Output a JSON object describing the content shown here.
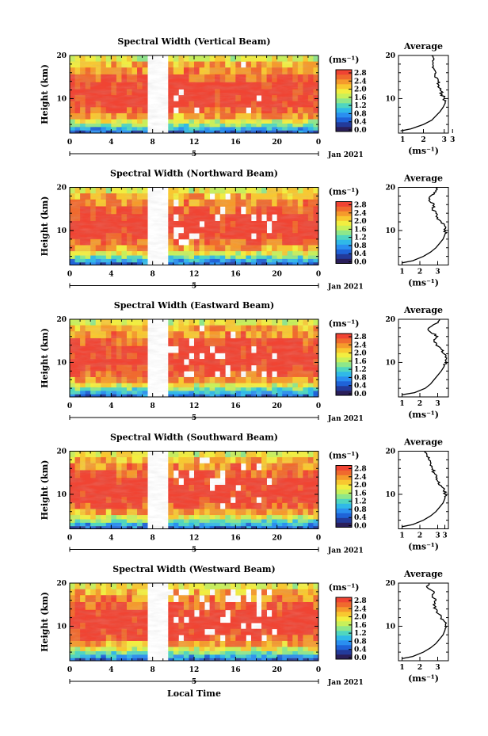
{
  "chart_data": [
    {
      "type": "heatmap",
      "title": "Spectral Width (Vertical Beam)",
      "ylabel": "Height (km)",
      "x_ticks": [
        "0",
        "4",
        "8",
        "12",
        "16",
        "20",
        "0"
      ],
      "y_ticks": [
        "20",
        "10"
      ],
      "xlim": [
        0,
        24
      ],
      "ylim": [
        2,
        20
      ],
      "date_tick_label": "5",
      "date_label": "Jan 2021",
      "missing_data_hours": [
        7.6,
        9.2
      ],
      "data_gaps": "light",
      "colorbar": {
        "unit": "(ms⁻¹)",
        "ticks": [
          "2.8",
          "2.4",
          "2.0",
          "1.6",
          "1.2",
          "0.8",
          "0.4",
          "0.0"
        ]
      },
      "average_profile": {
        "title": "Average",
        "xlabel": "(ms⁻¹)",
        "x_ticks": [
          "1",
          "2",
          "3",
          "3"
        ],
        "xlim": [
          0.8,
          3.2
        ],
        "y_ticks": [
          "20",
          "10"
        ],
        "height_km": [
          2.5,
          3,
          4,
          5,
          6,
          7,
          8,
          9,
          10,
          11,
          12,
          13,
          14,
          15,
          16,
          17,
          18,
          19,
          20
        ],
        "width_ms": [
          0.9,
          1.4,
          2.0,
          2.4,
          2.6,
          2.8,
          2.95,
          3.05,
          3.0,
          2.9,
          2.8,
          2.75,
          2.7,
          2.55,
          2.6,
          2.5,
          2.45,
          2.5,
          2.4
        ]
      }
    },
    {
      "type": "heatmap",
      "title": "Spectral Width (Northward Beam)",
      "ylabel": "Height (km)",
      "x_ticks": [
        "0",
        "4",
        "8",
        "12",
        "16",
        "20",
        "0"
      ],
      "y_ticks": [
        "20",
        "10"
      ],
      "xlim": [
        0,
        24
      ],
      "ylim": [
        2,
        20
      ],
      "date_tick_label": "5",
      "date_label": "Jan 2021",
      "missing_data_hours": [
        7.6,
        9.2
      ],
      "data_gaps": "moderate",
      "colorbar": {
        "unit": "(ms⁻¹)",
        "ticks": [
          "2.8",
          "2.4",
          "2.0",
          "1.6",
          "1.2",
          "0.8",
          "0.4",
          "0.0"
        ]
      },
      "average_profile": {
        "title": "Average",
        "xlabel": "(ms⁻¹)",
        "x_ticks": [
          "1",
          "2",
          "3"
        ],
        "xlim": [
          0.8,
          3.6
        ],
        "y_ticks": [
          "20",
          "10"
        ],
        "height_km": [
          2.5,
          3,
          4,
          5,
          6,
          7,
          8,
          9,
          10,
          11,
          12,
          13,
          14,
          15,
          16,
          17,
          18,
          19,
          20
        ],
        "width_ms": [
          1.0,
          1.6,
          2.2,
          2.6,
          2.9,
          3.1,
          3.3,
          3.4,
          3.45,
          3.4,
          3.2,
          3.0,
          2.9,
          2.7,
          2.8,
          2.5,
          2.6,
          2.9,
          3.0
        ]
      }
    },
    {
      "type": "heatmap",
      "title": "Spectral Width (Eastward Beam)",
      "ylabel": "Height (km)",
      "x_ticks": [
        "0",
        "4",
        "8",
        "12",
        "16",
        "20",
        "0"
      ],
      "y_ticks": [
        "20",
        "10"
      ],
      "xlim": [
        0,
        24
      ],
      "ylim": [
        2,
        20
      ],
      "date_tick_label": "5",
      "date_label": "Jan 2021",
      "missing_data_hours": [
        7.6,
        9.2
      ],
      "data_gaps": "heavy",
      "colorbar": {
        "unit": "(ms⁻¹)",
        "ticks": [
          "2.8",
          "2.4",
          "2.0",
          "1.6",
          "1.2",
          "0.8",
          "0.4",
          "0.0"
        ]
      },
      "average_profile": {
        "title": "Average",
        "xlabel": "(ms⁻¹)",
        "x_ticks": [
          "1",
          "2",
          "3"
        ],
        "xlim": [
          0.8,
          3.6
        ],
        "y_ticks": [
          "20",
          "10"
        ],
        "height_km": [
          2.5,
          3,
          4,
          5,
          6,
          7,
          8,
          9,
          10,
          11,
          12,
          13,
          14,
          15,
          16,
          17,
          18,
          19,
          20
        ],
        "width_ms": [
          1.0,
          1.7,
          2.3,
          2.6,
          2.8,
          3.0,
          3.2,
          3.35,
          3.45,
          3.5,
          3.35,
          3.2,
          2.9,
          2.8,
          3.0,
          2.6,
          2.5,
          2.9,
          3.1
        ]
      }
    },
    {
      "type": "heatmap",
      "title": "Spectral Width (Southward Beam)",
      "ylabel": "Height (km)",
      "x_ticks": [
        "0",
        "4",
        "8",
        "12",
        "16",
        "20",
        "0"
      ],
      "y_ticks": [
        "20",
        "10"
      ],
      "xlim": [
        0,
        24
      ],
      "ylim": [
        2,
        20
      ],
      "date_tick_label": "5",
      "date_label": "Jan 2021",
      "missing_data_hours": [
        7.6,
        9.2
      ],
      "data_gaps": "moderate",
      "colorbar": {
        "unit": "(ms⁻¹)",
        "ticks": [
          "2.8",
          "2.4",
          "2.0",
          "1.6",
          "1.2",
          "0.8",
          "0.4",
          "0.0"
        ]
      },
      "average_profile": {
        "title": "Average",
        "xlabel": "(ms⁻¹)",
        "x_ticks": [
          "1",
          "2",
          "3",
          "3"
        ],
        "xlim": [
          0.8,
          3.6
        ],
        "y_ticks": [
          "20",
          "10"
        ],
        "height_km": [
          2.5,
          3,
          4,
          5,
          6,
          7,
          8,
          9,
          10,
          11,
          12,
          13,
          14,
          15,
          16,
          17,
          18,
          19,
          20
        ],
        "width_ms": [
          1.0,
          1.6,
          2.2,
          2.6,
          2.9,
          3.1,
          3.3,
          3.4,
          3.45,
          3.35,
          3.2,
          3.0,
          2.9,
          2.8,
          2.7,
          2.6,
          2.5,
          2.4,
          2.3
        ]
      }
    },
    {
      "type": "heatmap",
      "title": "Spectral Width (Westward Beam)",
      "ylabel": "Height (km)",
      "x_ticks": [
        "0",
        "4",
        "8",
        "12",
        "16",
        "20",
        "0"
      ],
      "y_ticks": [
        "20",
        "10"
      ],
      "xlim": [
        0,
        24
      ],
      "ylim": [
        2,
        20
      ],
      "date_tick_label": "5",
      "date_label": "Jan 2021",
      "missing_data_hours": [
        7.6,
        9.2
      ],
      "data_gaps": "heavy",
      "colorbar": {
        "unit": "(ms⁻¹)",
        "ticks": [
          "2.8",
          "2.4",
          "2.0",
          "1.6",
          "1.2",
          "0.8",
          "0.4",
          "0.0"
        ]
      },
      "average_profile": {
        "title": "Average",
        "xlabel": "(ms⁻¹)",
        "x_ticks": [
          "1",
          "2",
          "3"
        ],
        "xlim": [
          0.8,
          3.6
        ],
        "y_ticks": [
          "20",
          "10"
        ],
        "height_km": [
          2.5,
          3,
          4,
          5,
          6,
          7,
          8,
          9,
          10,
          11,
          12,
          13,
          14,
          15,
          16,
          17,
          18,
          19,
          20
        ],
        "width_ms": [
          1.0,
          1.6,
          2.2,
          2.6,
          2.9,
          3.1,
          3.3,
          3.4,
          3.45,
          3.4,
          3.2,
          3.0,
          2.9,
          2.75,
          2.9,
          2.7,
          2.8,
          2.4,
          2.5
        ]
      }
    }
  ],
  "figure": {
    "xlabel": "Local Time"
  },
  "colormap": [
    "#2a1e5a",
    "#233a9a",
    "#1f63d8",
    "#2a8ff0",
    "#30b9e8",
    "#4fd6c0",
    "#8ee78a",
    "#c8f05a",
    "#f2ee40",
    "#f8c830",
    "#f59a2c",
    "#f06a2e",
    "#f04433"
  ]
}
